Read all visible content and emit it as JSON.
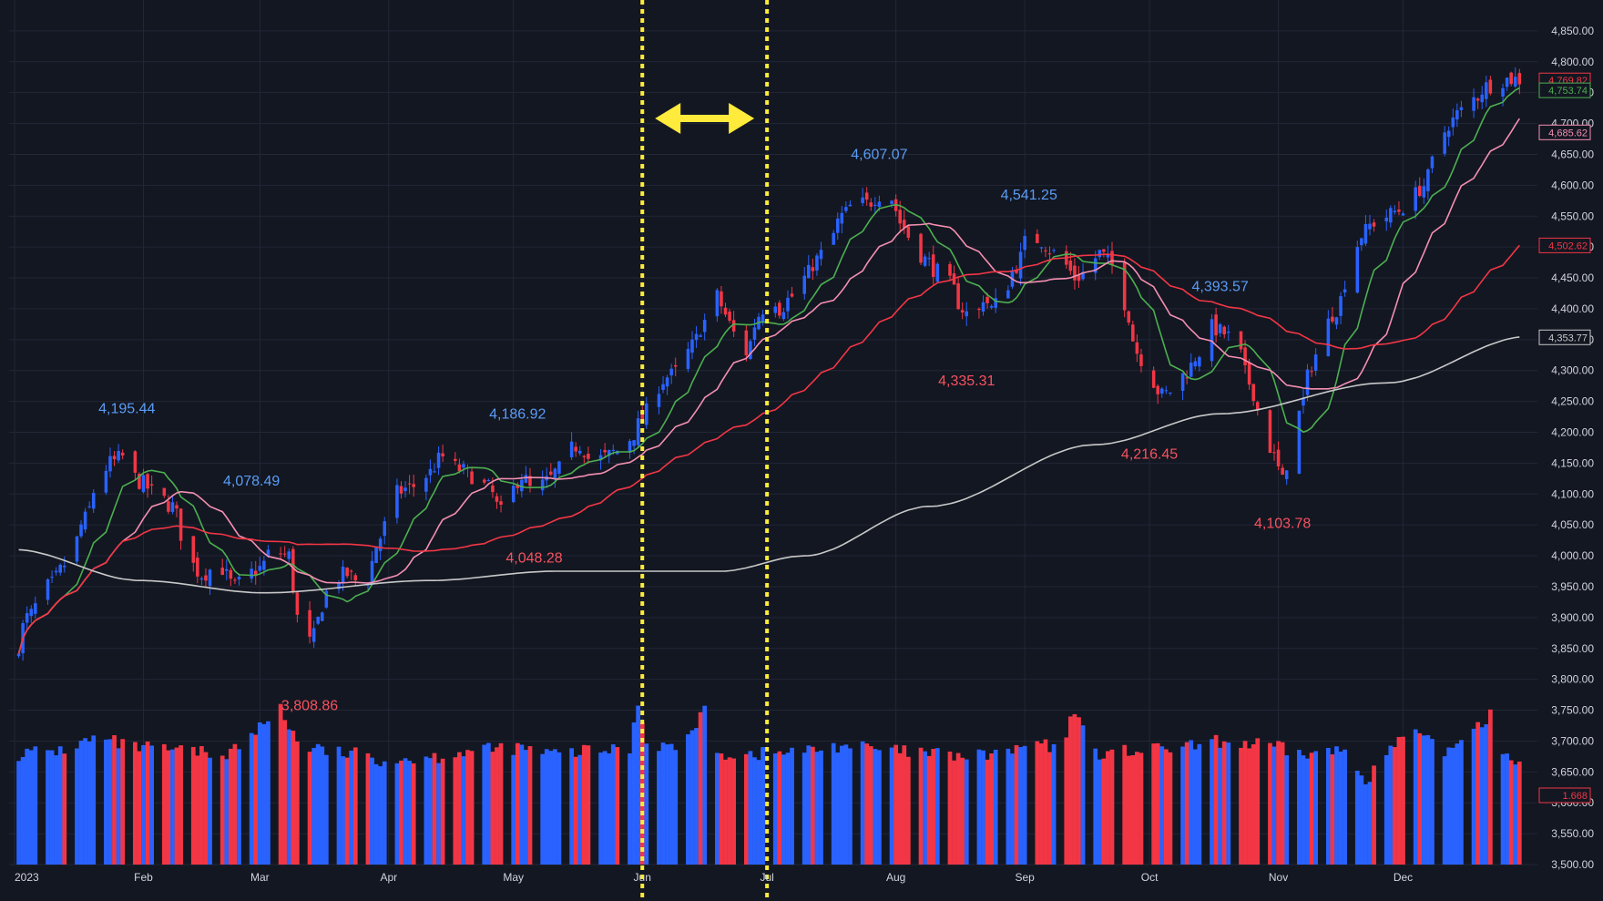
{
  "chart_data": {
    "type": "candlestick",
    "colors": {
      "background": "#131722",
      "grid": "#232736",
      "up": "#2962ff",
      "down": "#f23645",
      "sma_fast": "#4caf50",
      "sma_mid": "#f48fb1",
      "sma_slow": "#f23645",
      "sma_long": "#c8c8c8",
      "label_blue": "#5b9cf6",
      "label_red": "#f7525f",
      "guide": "#ffeb3b"
    },
    "ylim": [
      3500,
      4900
    ],
    "price_ticks": [
      "3,500.00",
      "3,550.00",
      "3,600.00",
      "3,650.00",
      "3,700.00",
      "3,750.00",
      "3,800.00",
      "3,850.00",
      "3,900.00",
      "3,950.00",
      "4,000.00",
      "4,050.00",
      "4,100.00",
      "4,150.00",
      "4,200.00",
      "4,250.00",
      "4,300.00",
      "4,350.00",
      "4,400.00",
      "4,450.00",
      "4,500.00",
      "4,550.00",
      "4,600.00",
      "4,650.00",
      "4,700.00",
      "4,750.00",
      "4,800.00",
      "4,850.00"
    ],
    "month_labels": [
      {
        "label": "2023",
        "day": 0
      },
      {
        "label": "Feb",
        "day": 31
      },
      {
        "label": "Mar",
        "day": 59
      },
      {
        "label": "Apr",
        "day": 90
      },
      {
        "label": "May",
        "day": 120
      },
      {
        "label": "Jun",
        "day": 151
      },
      {
        "label": "Jul",
        "day": 181
      },
      {
        "label": "Aug",
        "day": 212
      },
      {
        "label": "Sep",
        "day": 243
      },
      {
        "label": "Oct",
        "day": 273
      },
      {
        "label": "Nov",
        "day": 304
      },
      {
        "label": "Dec",
        "day": 334
      }
    ],
    "anchors": [
      [
        0,
        3840
      ],
      [
        3,
        3900
      ],
      [
        8,
        3950
      ],
      [
        13,
        3990
      ],
      [
        17,
        4060
      ],
      [
        20,
        4120
      ],
      [
        23,
        4150
      ],
      [
        26,
        4160
      ],
      [
        30,
        4120
      ],
      [
        34,
        4100
      ],
      [
        38,
        4080
      ],
      [
        42,
        3990
      ],
      [
        45,
        3970
      ],
      [
        49,
        3985
      ],
      [
        53,
        3950
      ],
      [
        56,
        3970
      ],
      [
        59,
        3980
      ],
      [
        62,
        4010
      ],
      [
        66,
        4000
      ],
      [
        68,
        3900
      ],
      [
        70,
        3850
      ],
      [
        72,
        3870
      ],
      [
        74,
        3920
      ],
      [
        76,
        3960
      ],
      [
        80,
        3970
      ],
      [
        84,
        3950
      ],
      [
        88,
        4030
      ],
      [
        91,
        4100
      ],
      [
        95,
        4110
      ],
      [
        99,
        4130
      ],
      [
        103,
        4160
      ],
      [
        107,
        4140
      ],
      [
        110,
        4130
      ],
      [
        114,
        4110
      ],
      [
        117,
        4070
      ],
      [
        119,
        4100
      ],
      [
        122,
        4130
      ],
      [
        125,
        4100
      ],
      [
        128,
        4120
      ],
      [
        131,
        4140
      ],
      [
        133,
        4170
      ],
      [
        136,
        4180
      ],
      [
        139,
        4150
      ],
      [
        142,
        4160
      ],
      [
        145,
        4170
      ],
      [
        148,
        4190
      ],
      [
        151,
        4220
      ],
      [
        154,
        4270
      ],
      [
        157,
        4290
      ],
      [
        160,
        4300
      ],
      [
        163,
        4340
      ],
      [
        166,
        4380
      ],
      [
        169,
        4420
      ],
      [
        171,
        4390
      ],
      [
        173,
        4360
      ],
      [
        176,
        4330
      ],
      [
        179,
        4390
      ],
      [
        182,
        4430
      ],
      [
        184,
        4400
      ],
      [
        187,
        4420
      ],
      [
        190,
        4450
      ],
      [
        193,
        4480
      ],
      [
        196,
        4510
      ],
      [
        199,
        4550
      ],
      [
        202,
        4570
      ],
      [
        205,
        4570
      ],
      [
        208,
        4585
      ],
      [
        211,
        4580
      ],
      [
        213,
        4540
      ],
      [
        216,
        4510
      ],
      [
        219,
        4480
      ],
      [
        222,
        4460
      ],
      [
        225,
        4440
      ],
      [
        228,
        4400
      ],
      [
        231,
        4370
      ],
      [
        233,
        4420
      ],
      [
        235,
        4400
      ],
      [
        238,
        4430
      ],
      [
        241,
        4470
      ],
      [
        244,
        4520
      ],
      [
        247,
        4510
      ],
      [
        250,
        4490
      ],
      [
        253,
        4470
      ],
      [
        255,
        4450
      ],
      [
        258,
        4460
      ],
      [
        261,
        4490
      ],
      [
        264,
        4470
      ],
      [
        267,
        4410
      ],
      [
        270,
        4330
      ],
      [
        273,
        4290
      ],
      [
        276,
        4260
      ],
      [
        279,
        4270
      ],
      [
        282,
        4300
      ],
      [
        285,
        4330
      ],
      [
        288,
        4370
      ],
      [
        291,
        4360
      ],
      [
        294,
        4340
      ],
      [
        297,
        4280
      ],
      [
        300,
        4220
      ],
      [
        303,
        4160
      ],
      [
        305,
        4120
      ],
      [
        307,
        4180
      ],
      [
        309,
        4230
      ],
      [
        312,
        4310
      ],
      [
        315,
        4370
      ],
      [
        318,
        4400
      ],
      [
        321,
        4460
      ],
      [
        324,
        4520
      ],
      [
        327,
        4540
      ],
      [
        330,
        4550
      ],
      [
        333,
        4560
      ],
      [
        336,
        4580
      ],
      [
        339,
        4600
      ],
      [
        342,
        4650
      ],
      [
        345,
        4700
      ],
      [
        348,
        4720
      ],
      [
        351,
        4740
      ],
      [
        354,
        4760
      ],
      [
        357,
        4770
      ],
      [
        360,
        4772
      ],
      [
        364,
        4770
      ]
    ],
    "volume_anchors": [
      [
        0,
        3.8
      ],
      [
        10,
        3.9
      ],
      [
        20,
        4.3
      ],
      [
        30,
        4.0
      ],
      [
        40,
        3.9
      ],
      [
        50,
        3.8
      ],
      [
        55,
        4.1
      ],
      [
        60,
        4.8
      ],
      [
        64,
        5.6
      ],
      [
        66,
        4.6
      ],
      [
        70,
        4.0
      ],
      [
        80,
        3.8
      ],
      [
        90,
        3.6
      ],
      [
        100,
        3.7
      ],
      [
        110,
        3.9
      ],
      [
        120,
        4.0
      ],
      [
        130,
        3.8
      ],
      [
        140,
        3.9
      ],
      [
        148,
        4.0
      ],
      [
        150,
        5.6
      ],
      [
        152,
        4.2
      ],
      [
        160,
        4.0
      ],
      [
        166,
        5.2
      ],
      [
        170,
        3.8
      ],
      [
        180,
        3.8
      ],
      [
        190,
        3.9
      ],
      [
        200,
        4.1
      ],
      [
        210,
        3.9
      ],
      [
        220,
        3.8
      ],
      [
        230,
        3.7
      ],
      [
        240,
        3.9
      ],
      [
        246,
        4.2
      ],
      [
        250,
        3.9
      ],
      [
        256,
        5.2
      ],
      [
        260,
        3.8
      ],
      [
        270,
        3.9
      ],
      [
        280,
        4.0
      ],
      [
        290,
        4.2
      ],
      [
        300,
        4.1
      ],
      [
        310,
        3.8
      ],
      [
        320,
        3.9
      ],
      [
        325,
        3.0
      ],
      [
        330,
        3.8
      ],
      [
        335,
        4.5
      ],
      [
        345,
        3.9
      ],
      [
        350,
        4.7
      ],
      [
        353,
        4.9
      ],
      [
        355,
        5.2
      ],
      [
        357,
        3.9
      ],
      [
        364,
        3.5
      ]
    ],
    "last_volume_label": "1.668",
    "annotations": [
      {
        "text": "4,195.44",
        "day": 27,
        "price": 4195.44,
        "kind": "high"
      },
      {
        "text": "4,078.49",
        "day": 57,
        "price": 4078.49,
        "kind": "high"
      },
      {
        "text": "3,808.86",
        "day": 71,
        "price": 3808.86,
        "kind": "low"
      },
      {
        "text": "4,186.92",
        "day": 121,
        "price": 4186.92,
        "kind": "high"
      },
      {
        "text": "4,048.28",
        "day": 125,
        "price": 4048.28,
        "kind": "low"
      },
      {
        "text": "4,607.07",
        "day": 208,
        "price": 4607.07,
        "kind": "high"
      },
      {
        "text": "4,335.31",
        "day": 229,
        "price": 4335.31,
        "kind": "low"
      },
      {
        "text": "4,541.25",
        "day": 244,
        "price": 4541.25,
        "kind": "high"
      },
      {
        "text": "4,393.57",
        "day": 290,
        "price": 4393.57,
        "kind": "high"
      },
      {
        "text": "4,216.45",
        "day": 273,
        "price": 4216.45,
        "kind": "low"
      },
      {
        "text": "4,103.78",
        "day": 305,
        "price": 4103.78,
        "kind": "low"
      }
    ],
    "price_tags": [
      {
        "text": "4,769.82",
        "price": 4769.82,
        "color": "#f23645"
      },
      {
        "text": "4,753.74",
        "price": 4753.74,
        "color": "#4caf50"
      },
      {
        "text": "4,685.62",
        "price": 4685.62,
        "color": "#f48fb1"
      },
      {
        "text": "4,502.62",
        "price": 4502.62,
        "color": "#f23645"
      },
      {
        "text": "4,353.77",
        "price": 4353.77,
        "color": "#c8c8c8"
      }
    ],
    "guide_days": [
      151,
      181
    ]
  }
}
